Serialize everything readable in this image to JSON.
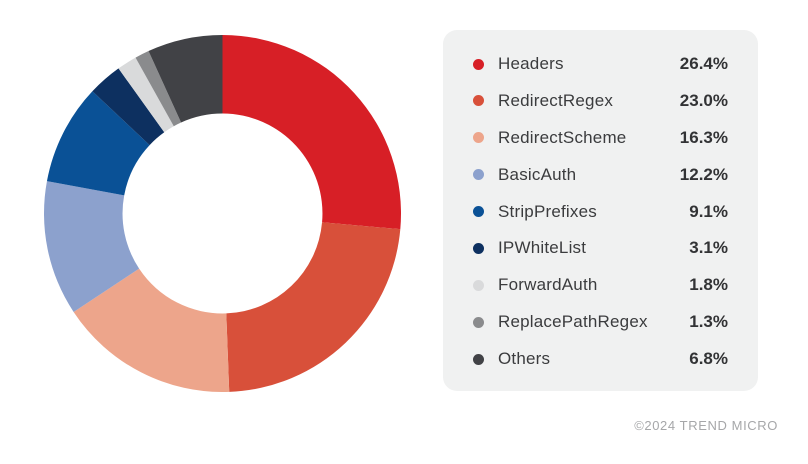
{
  "chart_data": {
    "type": "pie",
    "title": "",
    "donut": true,
    "start_angle_deg": 0,
    "direction": "clockwise",
    "inner_radius_ratio": 0.56,
    "legend_position": "right",
    "unit": "%",
    "categories": [
      "Headers",
      "RedirectRegex",
      "RedirectScheme",
      "BasicAuth",
      "StripPrefixes",
      "IPWhiteList",
      "ForwardAuth",
      "ReplacePathRegex",
      "Others"
    ],
    "values": [
      26.4,
      23.0,
      16.3,
      12.2,
      9.1,
      3.1,
      1.8,
      1.3,
      6.8
    ],
    "colors": [
      "#d71f26",
      "#d8503a",
      "#eda58b",
      "#8ca1cd",
      "#0a5196",
      "#0d3060",
      "#d9dadb",
      "#8a8b8d",
      "#414246"
    ]
  },
  "legend": {
    "items": [
      {
        "label": "Headers",
        "value": "26.4%",
        "color": "#d71f26"
      },
      {
        "label": "RedirectRegex",
        "value": "23.0%",
        "color": "#d8503a"
      },
      {
        "label": "RedirectScheme",
        "value": "16.3%",
        "color": "#eda58b"
      },
      {
        "label": "BasicAuth",
        "value": "12.2%",
        "color": "#8ca1cd"
      },
      {
        "label": "StripPrefixes",
        "value": "9.1%",
        "color": "#0a5196"
      },
      {
        "label": "IPWhiteList",
        "value": "3.1%",
        "color": "#0d3060"
      },
      {
        "label": "ForwardAuth",
        "value": "1.8%",
        "color": "#d9dadb"
      },
      {
        "label": "ReplacePathRegex",
        "value": "1.3%",
        "color": "#8a8b8d"
      },
      {
        "label": "Others",
        "value": "6.8%",
        "color": "#414246"
      }
    ]
  },
  "footer": {
    "copyright": "©2024 TREND MICRO"
  }
}
